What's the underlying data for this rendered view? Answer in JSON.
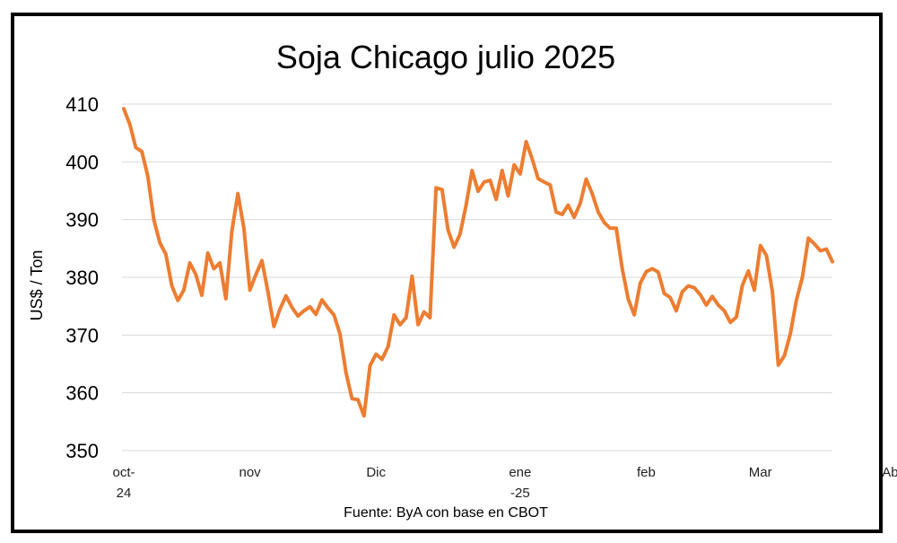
{
  "chart_data": {
    "type": "line",
    "title": "Soja Chicago julio 2025",
    "ylabel": "US$ / Ton",
    "source": "Fuente: ByA con base en CBOT",
    "ylim": [
      350,
      410
    ],
    "yticks": [
      350,
      360,
      370,
      380,
      390,
      400,
      410
    ],
    "grid": true,
    "x_ticks": [
      {
        "label": "oct-",
        "label2": "24",
        "idx": 0
      },
      {
        "label": "nov",
        "label2": "",
        "idx": 21
      },
      {
        "label": "Dic",
        "label2": "",
        "idx": 42
      },
      {
        "label": "ene",
        "label2": "-25",
        "idx": 66
      },
      {
        "label": "feb",
        "label2": "",
        "idx": 87
      },
      {
        "label": "Mar",
        "label2": "",
        "idx": 106
      },
      {
        "label": "Abr",
        "label2": "",
        "idx": 128
      }
    ],
    "series": [
      {
        "color": "#ED7D31",
        "values": [
          409.2,
          406.5,
          402.5,
          401.8,
          397.5,
          390,
          386,
          384,
          378.5,
          376,
          377.8,
          382.5,
          380.5,
          376.9,
          384.2,
          381.5,
          382.5,
          376.3,
          388,
          394.5,
          388.5,
          377.8,
          380.5,
          382.9,
          377.5,
          371.5,
          374.5,
          376.8,
          374.8,
          373.3,
          374.2,
          374.9,
          373.6,
          376.1,
          374.7,
          373.5,
          370.2,
          363.5,
          359,
          358.8,
          356,
          364.7,
          366.7,
          365.8,
          368,
          373.5,
          371.8,
          373,
          380.2,
          371.8,
          374,
          373,
          395.5,
          395.2,
          388.2,
          385.2,
          387.5,
          392.5,
          398.5,
          394.9,
          396.5,
          396.8,
          393.5,
          398.5,
          394.1,
          399.5,
          397.9,
          403.5,
          400.5,
          397.1,
          396.5,
          396,
          391.3,
          390.9,
          392.5,
          390.4,
          392.8,
          397,
          394.5,
          391.3,
          389.5,
          388.5,
          388.5,
          381.5,
          376.2,
          373.5,
          379,
          381,
          381.5,
          380.9,
          377.2,
          376.5,
          374.2,
          377.5,
          378.5,
          378.2,
          377,
          375.2,
          376.7,
          375.2,
          374.2,
          372.2,
          373.1,
          378.6,
          381.1,
          377.8,
          385.5,
          383.8,
          377.5,
          364.8,
          366.4,
          370.2,
          376,
          380,
          386.8,
          385.8,
          384.6,
          384.9,
          382.7
        ]
      }
    ]
  }
}
